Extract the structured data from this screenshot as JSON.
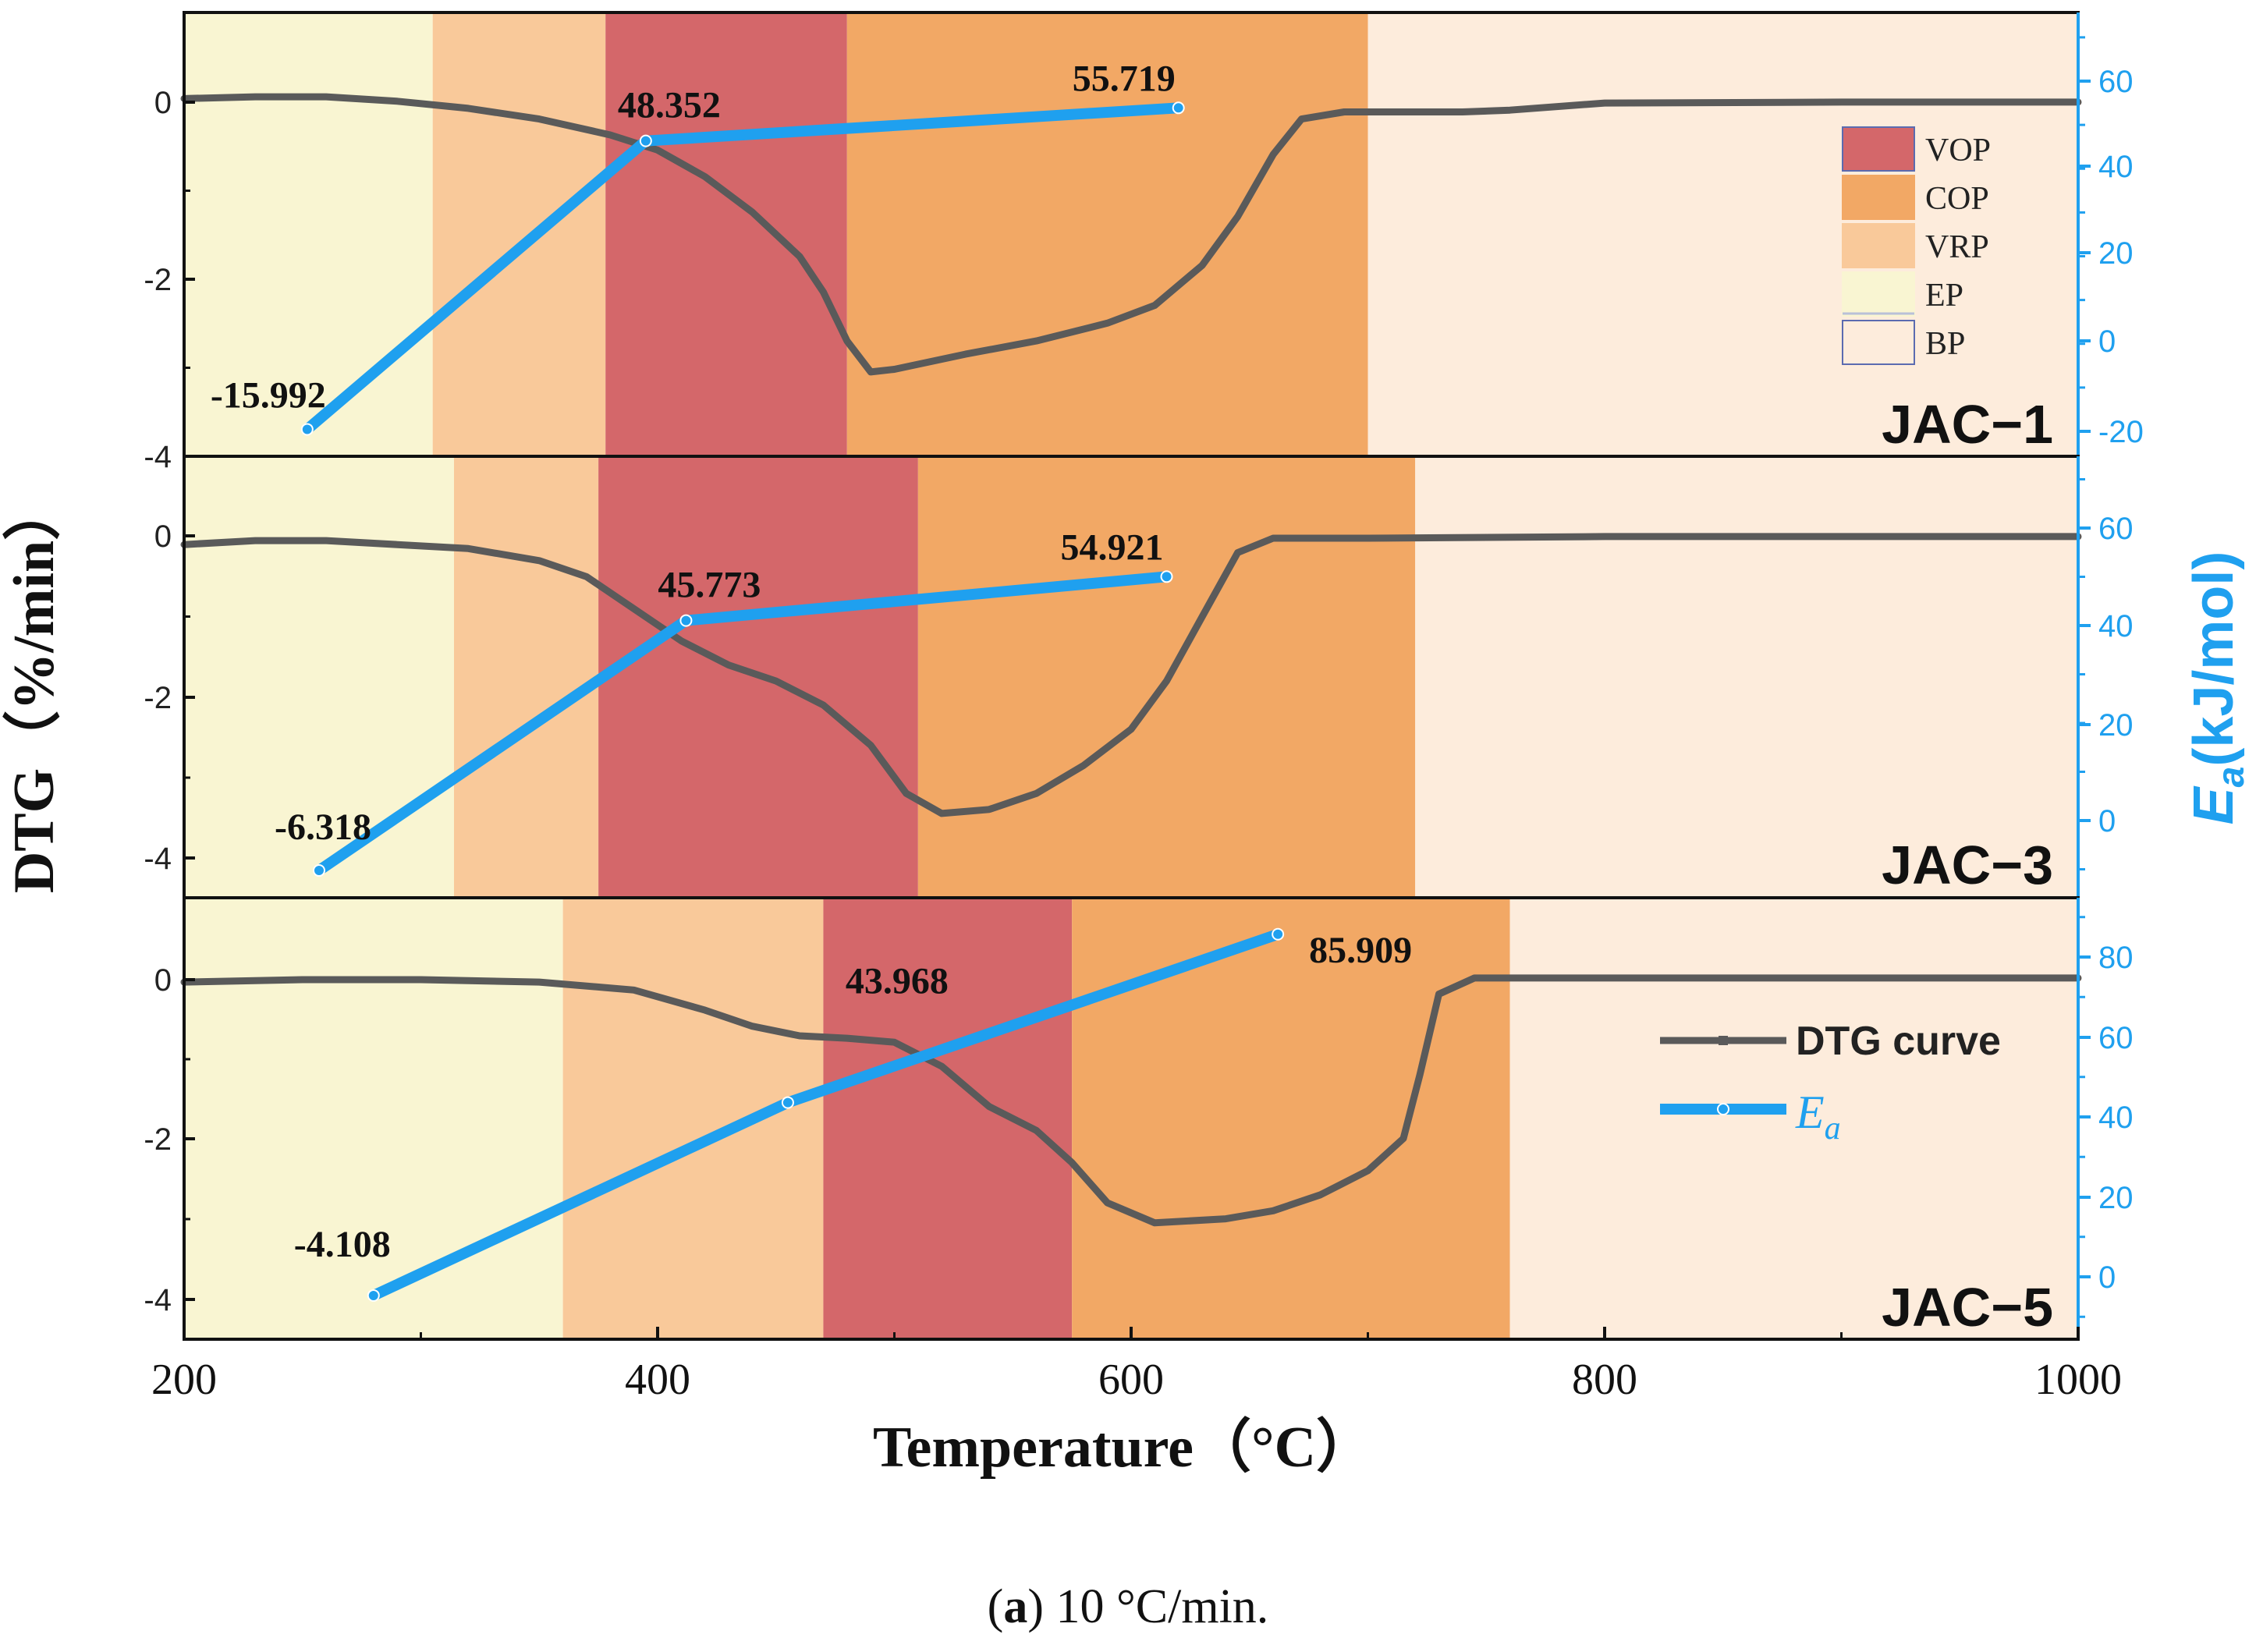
{
  "chart_data": {
    "type": "line",
    "caption": {
      "bold": "a",
      "rest": " 10 °C/min."
    },
    "xlabel": "Temperature（°C）",
    "ylabel_left": "DTG（%/min）",
    "ylabel_right": {
      "symbol": "E",
      "subscript": "a",
      "unit": "(kJ/mol)"
    },
    "xlim": [
      200,
      1000
    ],
    "xticks": [
      "200",
      "400",
      "600",
      "800",
      "1000"
    ],
    "region_legend": [
      {
        "key": "VOP",
        "label": "VOP",
        "color": "#d4676a"
      },
      {
        "key": "COP",
        "label": "COP",
        "color": "#f2a865"
      },
      {
        "key": "VRP",
        "label": "VRP",
        "color": "#f9c99a"
      },
      {
        "key": "EP",
        "label": "EP",
        "color": "#f9f5d2"
      },
      {
        "key": "BP",
        "label": "BP",
        "color": "#fdecdc"
      }
    ],
    "series_legend": {
      "dtg": "DTG curve",
      "ea_symbol": "E",
      "ea_sub": "a"
    },
    "colors": {
      "dtg": "#5a5a5a",
      "ea": "#1fa0ef",
      "axis": "#111111"
    },
    "panels": [
      {
        "label": "JAC−1",
        "dtg_ylim": [
          -4,
          1
        ],
        "dtg_ticks": [
          "0",
          "-2",
          "-4"
        ],
        "ea_ylim": [
          -22,
          77
        ],
        "ea_ticks": [
          "60",
          "40",
          "20",
          "0",
          "-20"
        ],
        "regions": [
          {
            "type": "EP",
            "from": 200,
            "to": 305
          },
          {
            "type": "VRP",
            "from": 305,
            "to": 378
          },
          {
            "type": "VOP",
            "from": 378,
            "to": 480
          },
          {
            "type": "COP",
            "from": 480,
            "to": 700
          },
          {
            "type": "BP",
            "from": 700,
            "to": 1000
          }
        ],
        "dtg": [
          [
            200,
            0.03
          ],
          [
            230,
            0.05
          ],
          [
            260,
            0.05
          ],
          [
            290,
            0.0
          ],
          [
            320,
            -0.08
          ],
          [
            350,
            -0.2
          ],
          [
            380,
            -0.38
          ],
          [
            400,
            -0.55
          ],
          [
            420,
            -0.85
          ],
          [
            440,
            -1.25
          ],
          [
            460,
            -1.75
          ],
          [
            470,
            -2.15
          ],
          [
            480,
            -2.7
          ],
          [
            490,
            -3.05
          ],
          [
            500,
            -3.02
          ],
          [
            530,
            -2.85
          ],
          [
            560,
            -2.7
          ],
          [
            590,
            -2.5
          ],
          [
            610,
            -2.3
          ],
          [
            630,
            -1.85
          ],
          [
            645,
            -1.3
          ],
          [
            660,
            -0.6
          ],
          [
            672,
            -0.2
          ],
          [
            690,
            -0.12
          ],
          [
            720,
            -0.12
          ],
          [
            740,
            -0.12
          ],
          [
            760,
            -0.1
          ],
          [
            800,
            -0.02
          ],
          [
            900,
            -0.01
          ],
          [
            1000,
            -0.01
          ]
        ],
        "ea": [
          {
            "T": 252,
            "value": -15.992,
            "label": "-15.992"
          },
          {
            "T": 395,
            "value": 48.352,
            "label": "48.352"
          },
          {
            "T": 620,
            "value": 55.719,
            "label": "55.719"
          }
        ]
      },
      {
        "label": "JAC−3",
        "dtg_ylim": [
          -4.5,
          1.0
        ],
        "dtg_ticks": [
          "0",
          "-2",
          "-4"
        ],
        "ea_ylim": [
          -12,
          80
        ],
        "ea_ticks": [
          "60",
          "40",
          "20",
          "0"
        ],
        "regions": [
          {
            "type": "EP",
            "from": 200,
            "to": 314
          },
          {
            "type": "VRP",
            "from": 314,
            "to": 375
          },
          {
            "type": "VOP",
            "from": 375,
            "to": 510
          },
          {
            "type": "COP",
            "from": 510,
            "to": 720
          },
          {
            "type": "BP",
            "from": 720,
            "to": 1000
          }
        ],
        "dtg": [
          [
            200,
            -0.1
          ],
          [
            230,
            -0.05
          ],
          [
            260,
            -0.05
          ],
          [
            290,
            -0.1
          ],
          [
            320,
            -0.15
          ],
          [
            350,
            -0.3
          ],
          [
            370,
            -0.5
          ],
          [
            390,
            -0.9
          ],
          [
            410,
            -1.3
          ],
          [
            430,
            -1.6
          ],
          [
            450,
            -1.8
          ],
          [
            470,
            -2.1
          ],
          [
            490,
            -2.6
          ],
          [
            505,
            -3.2
          ],
          [
            520,
            -3.45
          ],
          [
            540,
            -3.4
          ],
          [
            560,
            -3.2
          ],
          [
            580,
            -2.85
          ],
          [
            600,
            -2.4
          ],
          [
            615,
            -1.8
          ],
          [
            630,
            -1.0
          ],
          [
            645,
            -0.2
          ],
          [
            660,
            -0.02
          ],
          [
            700,
            -0.02
          ],
          [
            800,
            0.0
          ],
          [
            900,
            0.0
          ],
          [
            1000,
            0.0
          ]
        ],
        "ea": [
          {
            "T": 257,
            "value": -6.318,
            "label": "-6.318"
          },
          {
            "T": 412,
            "value": 45.773,
            "label": "45.773"
          },
          {
            "T": 615,
            "value": 54.921,
            "label": "54.921"
          }
        ]
      },
      {
        "label": "JAC−5",
        "dtg_ylim": [
          -4.5,
          1.0
        ],
        "dtg_ticks": [
          "0",
          "-2",
          "-4"
        ],
        "ea_ylim": [
          -15,
          95
        ],
        "ea_ticks": [
          "80",
          "60",
          "40",
          "20",
          "0"
        ],
        "regions": [
          {
            "type": "EP",
            "from": 200,
            "to": 360
          },
          {
            "type": "VRP",
            "from": 360,
            "to": 470
          },
          {
            "type": "VOP",
            "from": 470,
            "to": 575
          },
          {
            "type": "COP",
            "from": 575,
            "to": 760
          },
          {
            "type": "BP",
            "from": 760,
            "to": 1000
          }
        ],
        "dtg": [
          [
            200,
            -0.05
          ],
          [
            250,
            -0.02
          ],
          [
            300,
            -0.02
          ],
          [
            350,
            -0.05
          ],
          [
            390,
            -0.15
          ],
          [
            420,
            -0.4
          ],
          [
            440,
            -0.6
          ],
          [
            460,
            -0.72
          ],
          [
            480,
            -0.75
          ],
          [
            500,
            -0.8
          ],
          [
            520,
            -1.1
          ],
          [
            540,
            -1.6
          ],
          [
            560,
            -1.9
          ],
          [
            575,
            -2.3
          ],
          [
            590,
            -2.8
          ],
          [
            610,
            -3.05
          ],
          [
            640,
            -3.0
          ],
          [
            660,
            -2.9
          ],
          [
            680,
            -2.7
          ],
          [
            700,
            -2.4
          ],
          [
            715,
            -2.0
          ],
          [
            722,
            -1.2
          ],
          [
            730,
            -0.2
          ],
          [
            745,
            0.0
          ],
          [
            800,
            0.0
          ],
          [
            900,
            0.0
          ],
          [
            1000,
            0.0
          ]
        ],
        "ea": [
          {
            "T": 280,
            "value": -4.108,
            "label": "-4.108"
          },
          {
            "T": 455,
            "value": 43.968,
            "label": "43.968"
          },
          {
            "T": 662,
            "value": 85.909,
            "label": "85.909"
          }
        ]
      }
    ]
  }
}
